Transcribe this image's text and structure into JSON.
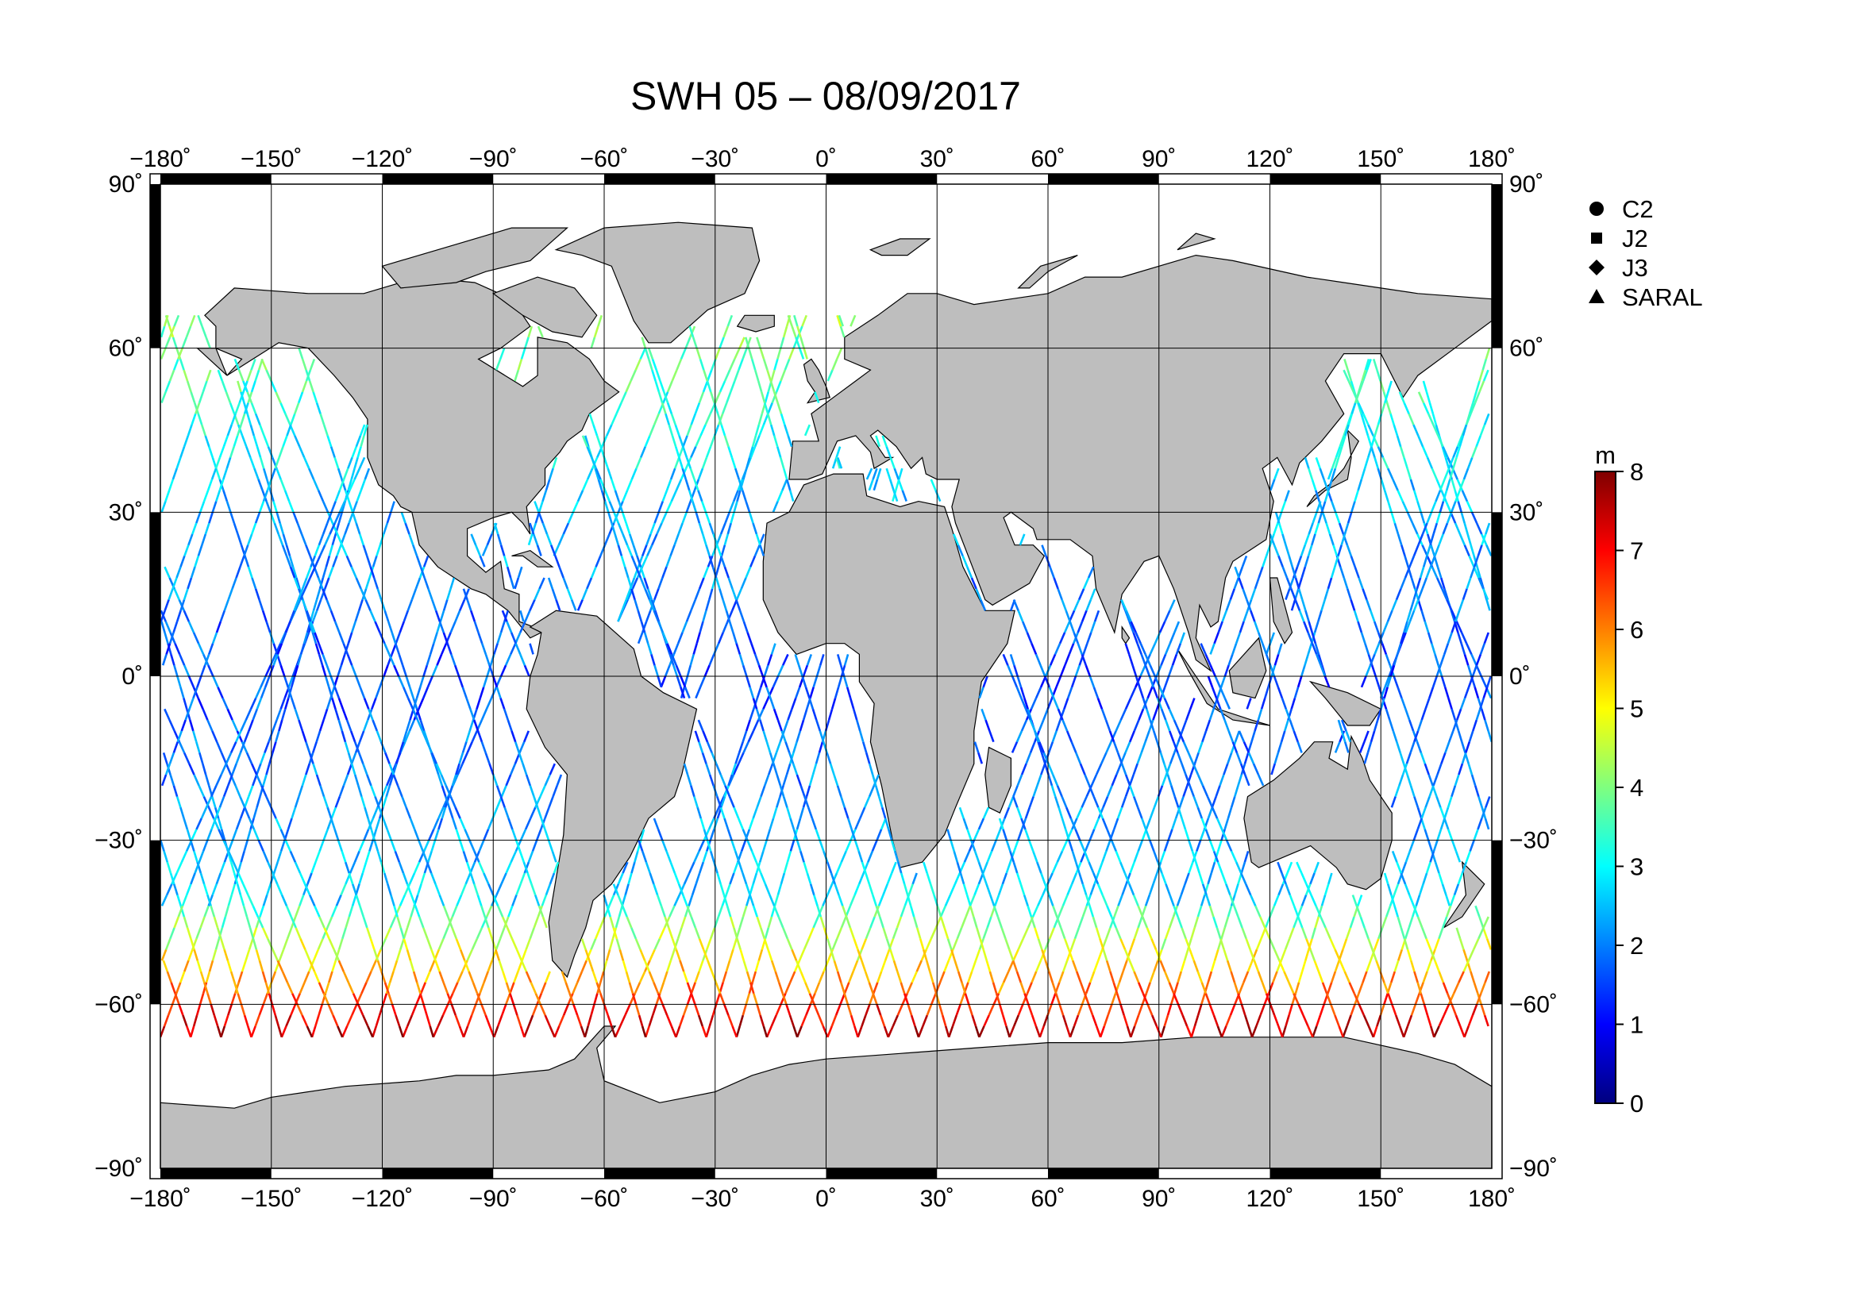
{
  "title": "SWH 05 – 08/09/2017",
  "x_ticks": [
    "−180˚",
    "−150˚",
    "−120˚",
    "−90˚",
    "−60˚",
    "−30˚",
    "0˚",
    "30˚",
    "60˚",
    "90˚",
    "120˚",
    "150˚",
    "180˚"
  ],
  "y_ticks": [
    "90˚",
    "60˚",
    "30˚",
    "0˚",
    "−30˚",
    "−60˚",
    "−90˚"
  ],
  "legend": [
    {
      "label": "C2",
      "symbol": "circle"
    },
    {
      "label": "J2",
      "symbol": "square"
    },
    {
      "label": "J3",
      "symbol": "diamond"
    },
    {
      "label": "SARAL",
      "symbol": "triangle"
    }
  ],
  "colorbar": {
    "unit": "m",
    "ticks": [
      "0",
      "1",
      "2",
      "3",
      "4",
      "5",
      "6",
      "7",
      "8"
    ],
    "min": 0,
    "max": 8,
    "colors": [
      "#00007f",
      "#0000ff",
      "#007fff",
      "#00ffff",
      "#7fff7f",
      "#ffff00",
      "#ff7f00",
      "#ff0000",
      "#7f0000"
    ]
  },
  "colors": {
    "land": "#bebebe",
    "coast": "#000000",
    "frame": "#000000"
  },
  "chart_data": {
    "type": "map",
    "projection": "equirectangular",
    "lon_range": [
      -180,
      180
    ],
    "lat_range": [
      -90,
      90
    ],
    "grid": true,
    "variable": "SWH",
    "units": "m",
    "color_range": [
      0,
      8
    ],
    "legend_position": "top-right"
  }
}
